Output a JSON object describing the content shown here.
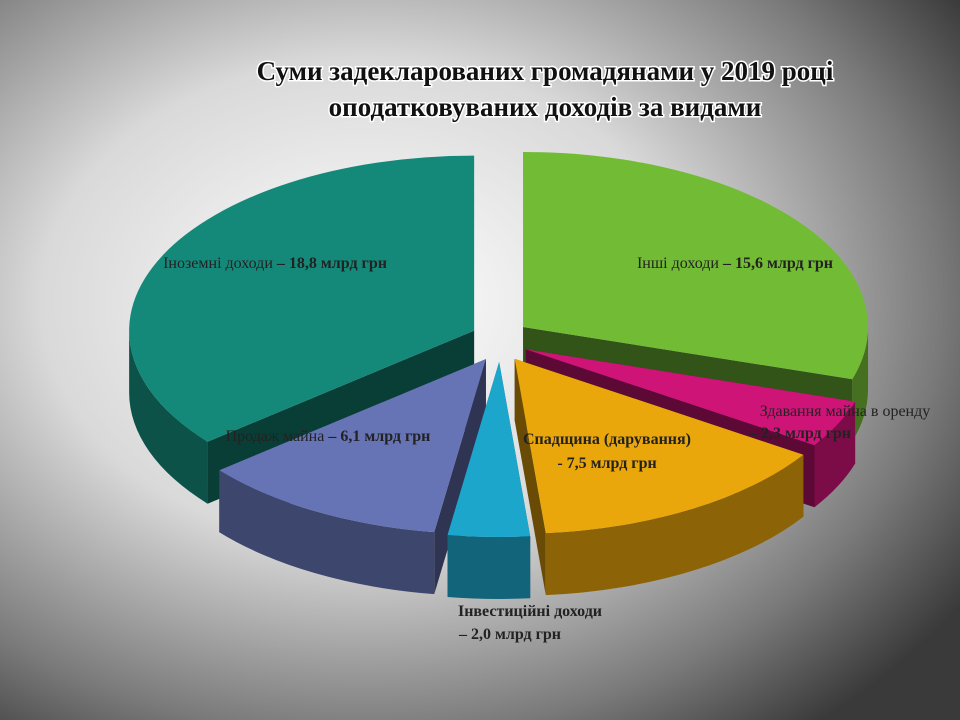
{
  "chart_data": {
    "type": "pie3d",
    "title": [
      "Суми задекларованих громадянами у 2019 році",
      "оподатковуваних доходів за видами"
    ],
    "categories": [
      "Інші доходи",
      "Здавання майна в оренду",
      "Спадщина (дарування)",
      "Інвестиційні доходи",
      "Продаж майна",
      "Іноземні доходи"
    ],
    "values": [
      15.6,
      2.3,
      7.5,
      2.0,
      6.1,
      18.8
    ],
    "value_labels": [
      "– 15,6 млрд грн",
      "– 2,3 млрд грн",
      "- 7,5 млрд грн",
      "– 2,0 млрд грн",
      "– 6,1 млрд грн",
      "– 18,8 млрд грн"
    ],
    "colors": [
      "#72bb35",
      "#cf1478",
      "#e9a70c",
      "#1ca6cc",
      "#6674b6",
      "#14897a"
    ]
  }
}
